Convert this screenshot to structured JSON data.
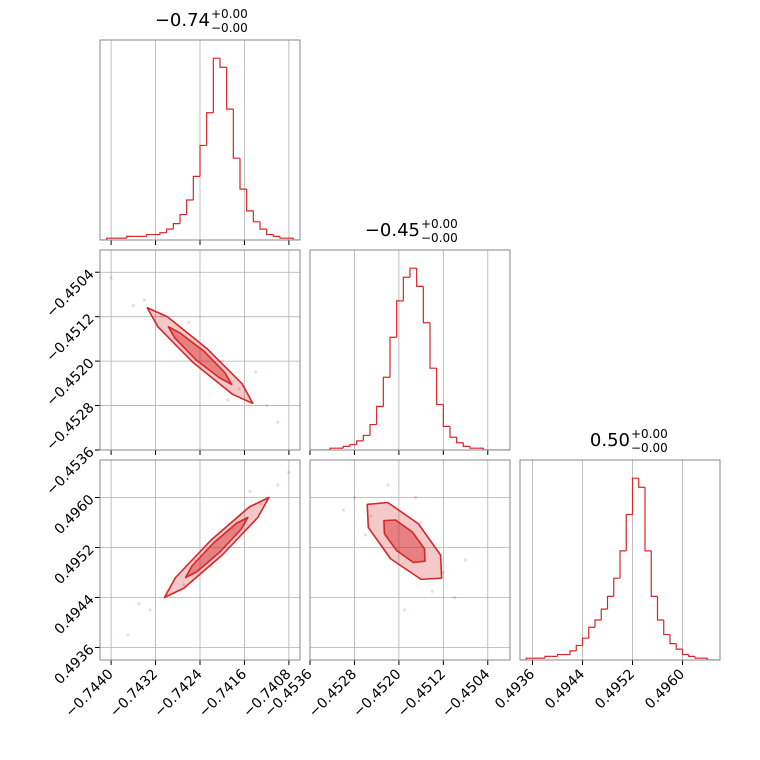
{
  "chart_data": {
    "type": "corner",
    "color": "#d62728",
    "grid": true,
    "hist_ylim": [
      0,
      110
    ],
    "params": [
      {
        "title": {
          "main": "−0.74",
          "plus": "+0.00",
          "minus": "−0.00"
        },
        "lim": [
          -0.7442,
          -0.7406
        ],
        "ticks": [
          {
            "value": -0.744,
            "label": "−0.7440"
          },
          {
            "value": -0.7432,
            "label": "−0.7432"
          },
          {
            "value": -0.7424,
            "label": "−0.7424"
          },
          {
            "value": -0.7416,
            "label": "−0.7416"
          },
          {
            "value": -0.7408,
            "label": "−0.7408"
          }
        ],
        "bins": [
          -0.7442,
          -0.74408,
          -0.74396,
          -0.74384,
          -0.74372,
          -0.7436,
          -0.74348,
          -0.74336,
          -0.74324,
          -0.74312,
          -0.743,
          -0.74288,
          -0.74276,
          -0.74264,
          -0.74252,
          -0.7424,
          -0.74228,
          -0.74216,
          -0.74204,
          -0.74192,
          -0.7418,
          -0.74168,
          -0.74156,
          -0.74144,
          -0.74132,
          -0.7412,
          -0.74108,
          -0.74096,
          -0.74084,
          -0.74072,
          -0.7406
        ],
        "values": [
          0,
          1,
          1,
          1,
          2,
          2,
          2,
          3,
          3,
          4,
          6,
          9,
          14,
          22,
          35,
          52,
          70,
          100,
          95,
          72,
          45,
          28,
          16,
          10,
          6,
          3,
          2,
          1,
          1,
          0
        ]
      },
      {
        "title": {
          "main": "−0.45",
          "plus": "+0.00",
          "minus": "−0.00"
        },
        "lim": [
          -0.4536,
          -0.45
        ],
        "ticks": [
          {
            "value": -0.4536,
            "label": "−0.4536"
          },
          {
            "value": -0.4528,
            "label": "−0.4528"
          },
          {
            "value": -0.452,
            "label": "−0.4520"
          },
          {
            "value": -0.4512,
            "label": "−0.4512"
          },
          {
            "value": -0.4504,
            "label": "−0.4504"
          }
        ],
        "bins": [
          -0.4536,
          -0.45348,
          -0.45336,
          -0.45324,
          -0.45312,
          -0.453,
          -0.45288,
          -0.45276,
          -0.45264,
          -0.45252,
          -0.4524,
          -0.45228,
          -0.45216,
          -0.45204,
          -0.45192,
          -0.4518,
          -0.45168,
          -0.45156,
          -0.45144,
          -0.45132,
          -0.4512,
          -0.45108,
          -0.45096,
          -0.45084,
          -0.45072,
          -0.4506,
          -0.45048,
          -0.45036,
          -0.45024,
          -0.45012,
          -0.45
        ],
        "values": [
          0,
          0,
          0,
          1,
          1,
          2,
          3,
          5,
          8,
          14,
          24,
          40,
          62,
          82,
          95,
          100,
          90,
          70,
          45,
          25,
          13,
          7,
          4,
          2,
          1,
          1,
          0,
          0,
          0,
          0
        ]
      },
      {
        "title": {
          "main": "0.50",
          "plus": "+0.00",
          "minus": "−0.00"
        },
        "lim": [
          0.4934,
          0.4966
        ],
        "ticks": [
          {
            "value": 0.4936,
            "label": "0.4936"
          },
          {
            "value": 0.4944,
            "label": "0.4944"
          },
          {
            "value": 0.4952,
            "label": "0.4952"
          },
          {
            "value": 0.496,
            "label": "0.4960"
          }
        ],
        "bins": [
          0.4934,
          0.4935,
          0.4936,
          0.4937,
          0.4938,
          0.4939,
          0.494,
          0.4941,
          0.4942,
          0.4943,
          0.4944,
          0.4945,
          0.4946,
          0.4947,
          0.4948,
          0.4949,
          0.495,
          0.4951,
          0.4952,
          0.4953,
          0.4954,
          0.4955,
          0.4956,
          0.4957,
          0.4958,
          0.4959,
          0.496,
          0.4961,
          0.4962,
          0.4963,
          0.4964,
          0.4965,
          0.4966
        ],
        "values": [
          0,
          1,
          1,
          1,
          2,
          2,
          3,
          3,
          5,
          8,
          12,
          18,
          22,
          28,
          35,
          45,
          60,
          80,
          100,
          95,
          60,
          35,
          22,
          14,
          9,
          6,
          3,
          2,
          1,
          1,
          0,
          0
        ]
      }
    ],
    "pairs": [
      {
        "points": {
          "x": [
            -0.744,
            -0.7436,
            -0.7431,
            -0.7428,
            -0.742,
            -0.7417,
            -0.7412,
            -0.741,
            -0.7426,
            -0.7419,
            -0.7434,
            -0.7414
          ],
          "y": [
            -0.4505,
            -0.451,
            -0.4512,
            -0.4516,
            -0.452,
            -0.4525,
            -0.4528,
            -0.4531,
            -0.4513,
            -0.4527,
            -0.4509,
            -0.4522
          ]
        },
        "contours": [
          {
            "x": [
              -0.74145,
              -0.74164,
              -0.74228,
              -0.74299,
              -0.74335,
              -0.74316,
              -0.74252,
              -0.74181
            ],
            "y": [
              -0.45276,
              -0.45241,
              -0.45177,
              -0.4512,
              -0.45104,
              -0.45138,
              -0.45203,
              -0.4526
            ]
          },
          {
            "x": [
              -0.74183,
              -0.74195,
              -0.74233,
              -0.74275,
              -0.74297,
              -0.74285,
              -0.74247,
              -0.74205
            ],
            "y": [
              -0.45242,
              -0.45221,
              -0.45182,
              -0.4515,
              -0.45138,
              -0.45159,
              -0.45198,
              -0.4523
            ]
          }
        ]
      },
      {
        "points": {
          "x": [
            -0.7437,
            -0.7433,
            -0.743,
            -0.7425,
            -0.7418,
            -0.7413,
            -0.741,
            -0.7408,
            -0.7427,
            -0.7415,
            -0.7422,
            -0.7435
          ],
          "y": [
            0.4938,
            0.4942,
            0.4945,
            0.495,
            0.4955,
            0.4959,
            0.4962,
            0.4964,
            0.4946,
            0.4961,
            0.4949,
            0.4943
          ]
        },
        "contours": [
          {
            "x": [
              -0.74116,
              -0.74151,
              -0.7422,
              -0.74284,
              -0.74304,
              -0.74269,
              -0.742,
              -0.74136
            ],
            "y": [
              0.496,
              0.49585,
              0.49532,
              0.49472,
              0.4944,
              0.49455,
              0.49508,
              0.49568
            ]
          },
          {
            "x": [
              -0.74154,
              -0.74174,
              -0.74216,
              -0.74254,
              -0.74266,
              -0.74246,
              -0.74204,
              -0.74166
            ],
            "y": [
              0.49568,
              0.49559,
              0.49527,
              0.49491,
              0.49472,
              0.49481,
              0.49513,
              0.49549
            ]
          }
        ]
      },
      {
        "points": {
          "x": [
            -0.4528,
            -0.4525,
            -0.4522,
            -0.4516,
            -0.4512,
            -0.451,
            -0.4514,
            -0.4526,
            -0.4508,
            -0.4519,
            -0.453,
            -0.4517
          ],
          "y": [
            0.496,
            0.4957,
            0.4962,
            0.4956,
            0.4948,
            0.4944,
            0.4945,
            0.4954,
            0.495,
            0.4942,
            0.4958,
            0.496
          ]
        },
        "contours": [
          {
            "x": [
              -0.45123,
              -0.45125,
              -0.45165,
              -0.4522,
              -0.45257,
              -0.45255,
              -0.45215,
              -0.4516
            ],
            "y": [
              0.49471,
              0.49508,
              0.49558,
              0.49592,
              0.49589,
              0.49552,
              0.49502,
              0.49469
            ]
          },
          {
            "x": [
              -0.45153,
              -0.45154,
              -0.45176,
              -0.45206,
              -0.45227,
              -0.45226,
              -0.45204,
              -0.45174
            ],
            "y": [
              0.49498,
              0.49518,
              0.49545,
              0.49564,
              0.49563,
              0.49542,
              0.49515,
              0.49496
            ]
          }
        ]
      }
    ]
  }
}
